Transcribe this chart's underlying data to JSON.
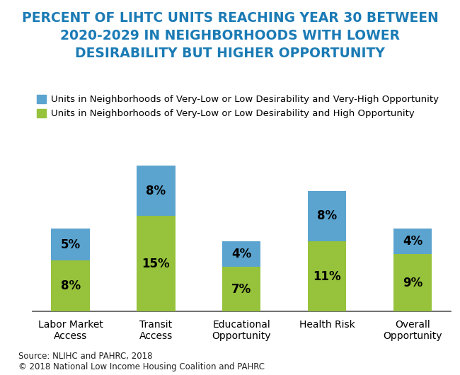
{
  "title_lines": [
    "PERCENT OF LIHTC UNITS REACHING YEAR 30 BETWEEN",
    "2020-2029 IN NEIGHBORHOODS WITH LOWER",
    "DESIRABILITY BUT HIGHER OPPORTUNITY"
  ],
  "title_color": "#1B7BB5",
  "categories": [
    "Labor Market\nAccess",
    "Transit\nAccess",
    "Educational\nOpportunity",
    "Health Risk",
    "Overall\nOpportunity"
  ],
  "blue_values": [
    5,
    8,
    4,
    8,
    4
  ],
  "green_values": [
    8,
    15,
    7,
    11,
    9
  ],
  "blue_color": "#5BA4CF",
  "green_color": "#96C23C",
  "blue_label": "Units in Neighborhoods of Very-Low or Low Desirability and Very-High Opportunity",
  "green_label": "Units in Neighborhoods of Very-Low or Low Desirability and High Opportunity",
  "source_text": "Source: NLIHC and PAHRC, 2018\n© 2018 National Low Income Housing Coalition and PAHRC",
  "bar_width": 0.45,
  "label_fontsize": 12,
  "tick_fontsize": 10,
  "title_fontsize": 13.5,
  "legend_fontsize": 9.5,
  "background_color": "#FFFFFF"
}
